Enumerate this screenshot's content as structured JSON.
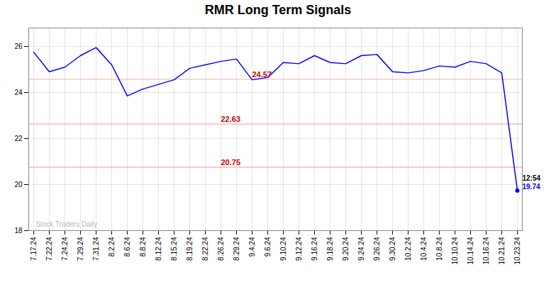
{
  "chart_data": {
    "type": "line",
    "title": "RMR Long Term Signals",
    "categories": [
      "7.17.24",
      "7.22.24",
      "7.24.24",
      "7.29.24",
      "7.31.24",
      "8.2.24",
      "8.6.24",
      "8.8.24",
      "8.12.24",
      "8.15.24",
      "8.19.24",
      "8.22.24",
      "8.26.24",
      "8.29.24",
      "9.4.24",
      "9.6.24",
      "9.10.24",
      "9.12.24",
      "9.16.24",
      "9.18.24",
      "9.20.24",
      "9.24.24",
      "9.26.24",
      "9.30.24",
      "10.2.24",
      "10.4.24",
      "10.8.24",
      "10.10.24",
      "10.14.24",
      "10.16.24",
      "10.21.24",
      "10.23.24"
    ],
    "values": [
      25.75,
      24.9,
      25.1,
      25.6,
      25.95,
      25.2,
      23.85,
      24.15,
      24.35,
      24.55,
      25.05,
      25.2,
      25.35,
      25.45,
      24.55,
      24.65,
      25.3,
      25.25,
      25.6,
      25.3,
      25.25,
      25.6,
      25.65,
      24.9,
      24.85,
      24.95,
      25.15,
      25.1,
      25.35,
      25.25,
      24.85,
      19.74
    ],
    "color": "blue",
    "ylim": [
      18,
      26.8
    ],
    "yticks": [
      18,
      20,
      22,
      24,
      26
    ],
    "grid": true,
    "watermark": "Stock Traders Daily",
    "horizontal_lines": [
      {
        "y": 24.57,
        "label": "24.57",
        "color": "#cc0000",
        "line_color": "#ffaaaa",
        "x": "9.4.24"
      },
      {
        "y": 22.63,
        "label": "22.63",
        "color": "#cc0000",
        "line_color": "#ffaaaa",
        "x": "8.26.24"
      },
      {
        "y": 20.75,
        "label": "20.75",
        "color": "#cc0000",
        "line_color": "#ffaaaa",
        "x": "8.26.24"
      }
    ],
    "annotations": [
      {
        "text": "12:54",
        "color": "black"
      },
      {
        "text": "19.74",
        "color": "blue"
      }
    ]
  }
}
